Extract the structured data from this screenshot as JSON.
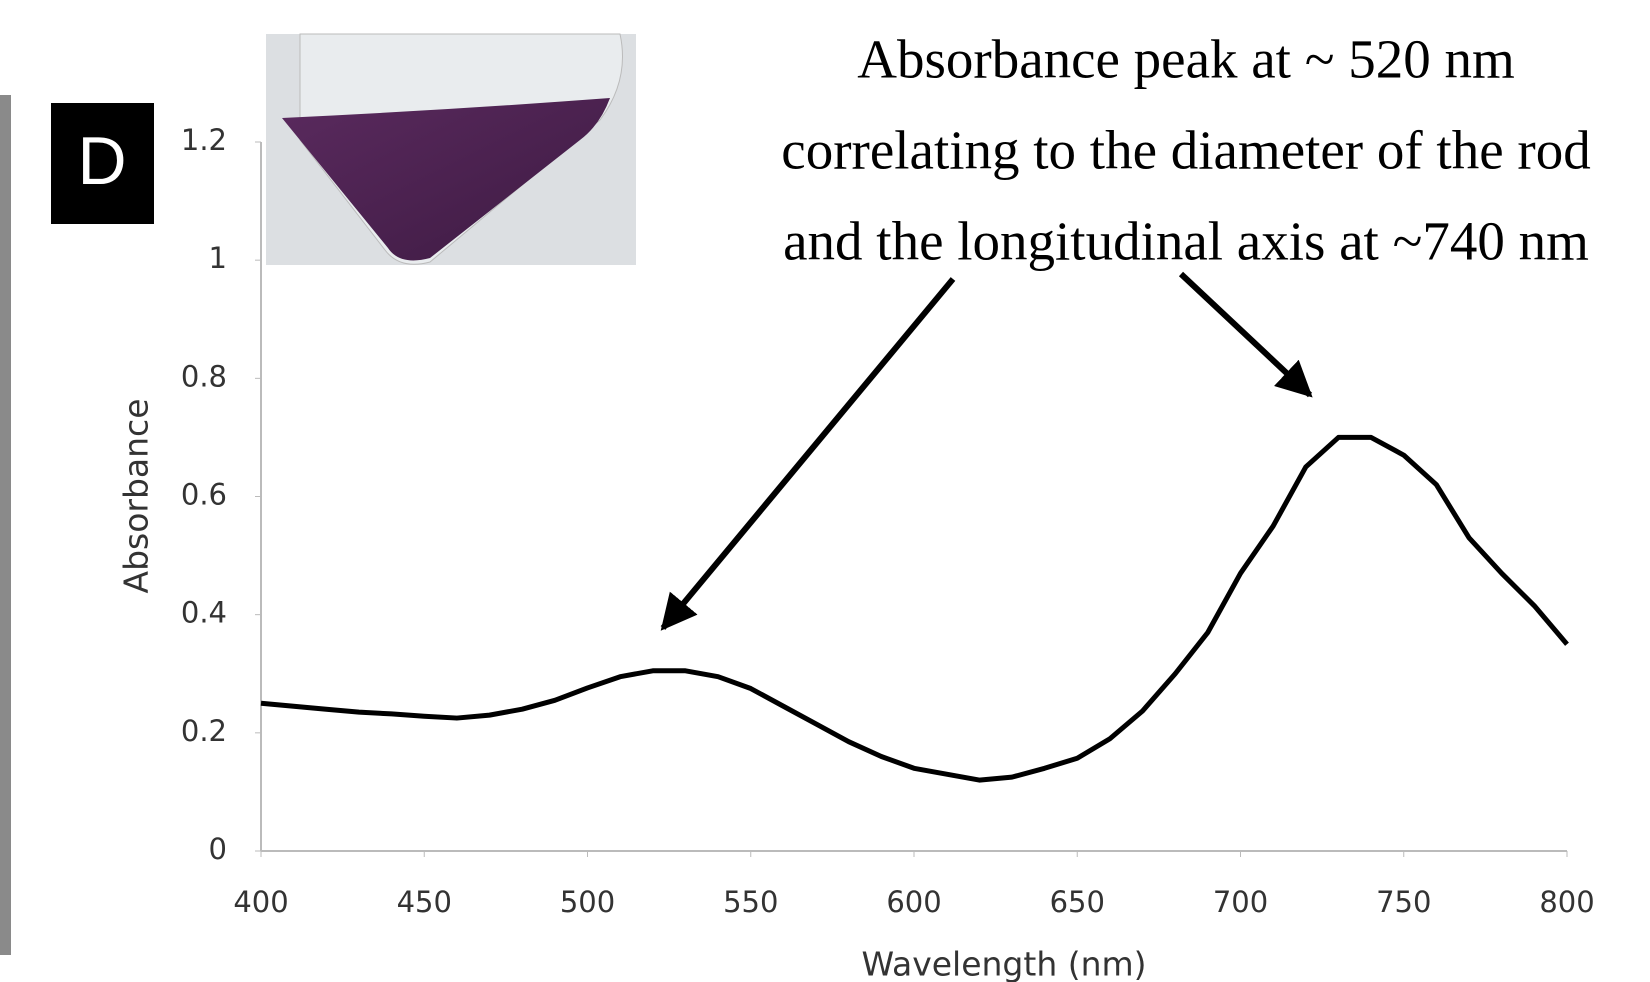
{
  "chart_data": {
    "type": "line",
    "panel_label": "D",
    "annotation": [
      "Absorbance peak at ~ 520 nm",
      "correlating to the diameter of the rod",
      "and the longitudinal axis at ~740 nm"
    ],
    "xlabel": "Wavelength (nm)",
    "ylabel": "Absorbance",
    "x": [
      400,
      410,
      420,
      430,
      440,
      450,
      460,
      470,
      480,
      490,
      500,
      510,
      520,
      530,
      540,
      550,
      560,
      570,
      580,
      590,
      600,
      610,
      620,
      630,
      640,
      650,
      660,
      670,
      680,
      690,
      700,
      710,
      720,
      730,
      740,
      750,
      760,
      770,
      780,
      790,
      800
    ],
    "values": [
      0.25,
      0.245,
      0.24,
      0.235,
      0.232,
      0.228,
      0.225,
      0.23,
      0.24,
      0.255,
      0.276,
      0.295,
      0.305,
      0.305,
      0.295,
      0.275,
      0.245,
      0.215,
      0.185,
      0.16,
      0.14,
      0.13,
      0.12,
      0.125,
      0.14,
      0.157,
      0.19,
      0.237,
      0.3,
      0.37,
      0.47,
      0.55,
      0.65,
      0.7,
      0.7,
      0.67,
      0.62,
      0.53,
      0.47,
      0.415,
      0.35
    ],
    "color": "#000000",
    "xlim": [
      400,
      800
    ],
    "ylim": [
      0,
      1.2
    ],
    "xticks": [
      400,
      450,
      500,
      550,
      600,
      650,
      700,
      750,
      800
    ],
    "yticks": [
      0,
      0.2,
      0.4,
      0.6,
      0.8,
      1,
      1.2
    ]
  }
}
